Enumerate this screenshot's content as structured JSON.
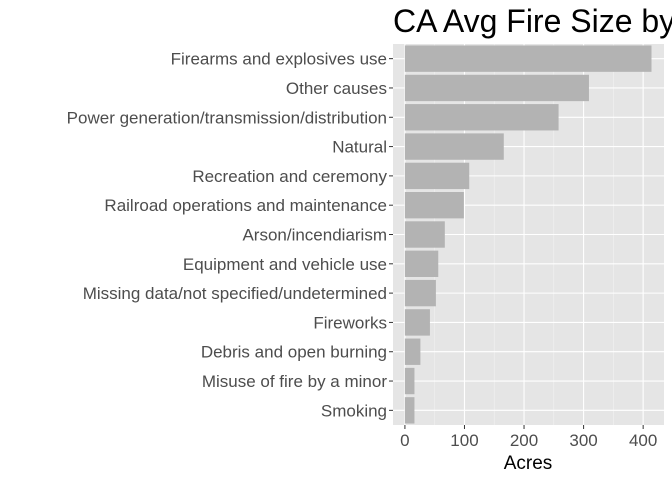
{
  "chart_data": {
    "type": "bar",
    "orientation": "horizontal",
    "title": "CA Avg Fire Size by",
    "xlabel": "Acres",
    "ylabel": "",
    "categories": [
      "Firearms and explosives use",
      "Other causes",
      "Power generation/transmission/distribution",
      "Natural",
      "Recreation and ceremony",
      "Railroad operations and maintenance",
      "Arson/incendiarism",
      "Equipment and vehicle use",
      "Missing data/not specified/undetermined",
      "Fireworks",
      "Debris and open burning",
      "Misuse of fire by a minor",
      "Smoking"
    ],
    "values": [
      414,
      309,
      258,
      166,
      108,
      99,
      67,
      56,
      52,
      42,
      26,
      16,
      16
    ],
    "xticks": [
      0,
      100,
      200,
      300,
      400
    ],
    "xlim": [
      -20,
      435
    ],
    "grid": true,
    "legend": "none",
    "colors": {
      "bar": "#b3b3b3",
      "panel": "#e5e5e5",
      "grid": "#ffffff"
    }
  }
}
